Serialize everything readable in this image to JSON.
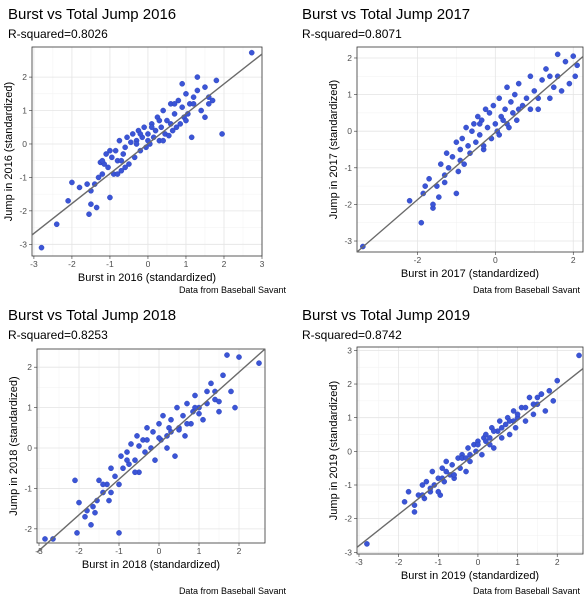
{
  "panels": [
    {
      "title": "Burst vs Total Jump 2016",
      "subtitle": "R-squared=0.8026",
      "caption": "Data from Baseball Savant"
    },
    {
      "title": "Burst vs Total Jump 2017",
      "subtitle": "R-squared=0.8071",
      "caption": "Data from Baseball Savant"
    },
    {
      "title": "Burst vs Total Jump 2018",
      "subtitle": "R-squared=0.8253",
      "caption": "Data from Baseball Savant"
    },
    {
      "title": "Burst vs Total Jump 2019",
      "subtitle": "R-squared=0.8742",
      "caption": "Data from Baseball Savant"
    }
  ],
  "chart_data": [
    {
      "type": "scatter",
      "title": "Burst vs Total Jump 2016",
      "subtitle": "R-squared=0.8026",
      "xlabel": "Burst in 2016 (standardized)",
      "ylabel": "Jump in 2016 (standardized)",
      "caption": "Data from Baseball Savant",
      "xlim": [
        -3.05,
        3.0
      ],
      "ylim": [
        -3.35,
        2.9
      ],
      "xticks": [
        -3,
        -2,
        -1,
        0,
        1,
        2,
        3
      ],
      "yticks": [
        -3,
        -2,
        -1,
        0,
        1,
        2
      ],
      "point_color": "#3b55d6",
      "fit_line": {
        "x": [
          -3.05,
          3.0
        ],
        "y": [
          -2.72,
          2.69
        ],
        "color": "#6a6a6a"
      },
      "x": [
        2.73,
        -2.8,
        -2.4,
        -2.1,
        -2.0,
        -1.8,
        -1.6,
        -1.55,
        -1.5,
        -1.4,
        -1.35,
        -1.3,
        -1.25,
        -1.2,
        -1.15,
        -1.1,
        -1.05,
        -1.0,
        -0.95,
        -0.9,
        -0.85,
        -0.8,
        -0.75,
        -0.7,
        -0.65,
        -0.6,
        -0.55,
        -0.5,
        -0.45,
        -0.4,
        -0.35,
        -0.3,
        -0.25,
        -0.2,
        -0.15,
        -0.1,
        -0.05,
        0.0,
        0.05,
        0.1,
        0.15,
        0.2,
        0.25,
        0.3,
        0.35,
        0.4,
        0.45,
        0.5,
        0.55,
        0.6,
        0.65,
        0.7,
        0.75,
        0.8,
        0.85,
        0.9,
        0.95,
        1.0,
        1.05,
        1.1,
        1.15,
        1.2,
        1.3,
        1.4,
        1.5,
        1.6,
        1.7,
        1.8,
        -1.2,
        -1.0,
        -0.6,
        -0.3,
        0.1,
        0.4,
        0.7,
        1.0,
        1.3,
        1.6,
        -0.8,
        -0.2,
        0.3,
        0.9,
        1.5,
        -1.5,
        -0.7,
        0.0,
        0.6,
        1.2,
        1.95
      ],
      "y": [
        2.73,
        -3.1,
        -2.4,
        -1.7,
        -1.15,
        -1.3,
        -1.2,
        -2.1,
        -1.8,
        -1.2,
        -1.9,
        -1.0,
        -0.55,
        -0.9,
        -0.6,
        -0.3,
        -0.7,
        -1.6,
        -0.4,
        -0.9,
        -0.2,
        -0.5,
        0.1,
        -0.8,
        -0.3,
        -0.1,
        0.2,
        -0.6,
        0.05,
        0.3,
        -0.4,
        0.1,
        0.4,
        -0.2,
        0.2,
        0.5,
        -0.1,
        0.3,
        0.0,
        0.6,
        0.2,
        0.4,
        0.8,
        0.1,
        0.5,
        1.0,
        0.3,
        0.7,
        0.25,
        1.2,
        0.4,
        0.9,
        0.5,
        1.3,
        0.6,
        1.1,
        0.8,
        1.5,
        0.9,
        1.2,
        0.2,
        1.4,
        1.6,
        1.0,
        1.7,
        1.4,
        1.3,
        1.9,
        -0.5,
        -0.2,
        -0.7,
        0.0,
        0.5,
        0.1,
        1.2,
        0.7,
        2.0,
        1.2,
        -0.9,
        0.3,
        0.7,
        1.8,
        0.8,
        -1.4,
        -0.5,
        0.1,
        0.6,
        1.2,
        0.3
      ]
    },
    {
      "type": "scatter",
      "title": "Burst vs Total Jump 2017",
      "subtitle": "R-squared=0.8071",
      "xlabel": "Burst in 2017 (standardized)",
      "ylabel": "Jump in 2017 (standardized)",
      "caption": "Data from Baseball Savant",
      "xlim": [
        -3.55,
        2.25
      ],
      "ylim": [
        -3.3,
        2.3
      ],
      "xticks": [
        -2,
        0,
        2
      ],
      "yticks": [
        -3,
        -2,
        -1,
        0,
        1,
        2
      ],
      "point_color": "#3b55d6",
      "fit_line": {
        "x": [
          -3.55,
          2.25
        ],
        "y": [
          -3.3,
          2.04
        ],
        "color": "#6a6a6a"
      },
      "x": [
        -3.4,
        -2.2,
        -1.9,
        -1.85,
        -1.7,
        -1.6,
        -1.5,
        -1.45,
        -1.4,
        -1.3,
        -1.25,
        -1.2,
        -1.1,
        -1.0,
        -0.95,
        -0.9,
        -0.85,
        -0.8,
        -0.75,
        -0.7,
        -0.65,
        -0.6,
        -0.55,
        -0.5,
        -0.45,
        -0.4,
        -0.35,
        -0.3,
        -0.25,
        -0.2,
        -0.15,
        -0.1,
        -0.05,
        0.0,
        0.05,
        0.1,
        0.15,
        0.2,
        0.25,
        0.3,
        0.35,
        0.4,
        0.45,
        0.5,
        0.55,
        0.6,
        0.7,
        0.8,
        0.9,
        1.0,
        1.1,
        1.2,
        1.3,
        1.4,
        1.5,
        1.6,
        1.7,
        1.8,
        1.9,
        2.0,
        2.05,
        -1.8,
        -1.3,
        -0.9,
        -0.4,
        0.1,
        0.6,
        1.1,
        1.6,
        -1.6,
        -1.0,
        -0.3,
        0.3,
        0.9,
        1.4,
        2.1
      ],
      "y": [
        -3.15,
        -1.9,
        -2.5,
        -1.7,
        -1.3,
        -2.1,
        -1.5,
        -1.8,
        -0.9,
        -1.4,
        -0.6,
        -1.0,
        -0.7,
        -0.3,
        -1.1,
        -0.5,
        -0.2,
        -0.9,
        0.1,
        -0.4,
        -0.6,
        0.0,
        0.2,
        -0.3,
        0.4,
        -0.1,
        0.3,
        -0.5,
        0.6,
        0.1,
        0.5,
        -0.2,
        0.7,
        0.2,
        0.0,
        0.9,
        0.4,
        0.3,
        0.6,
        1.2,
        0.1,
        0.8,
        0.5,
        1.0,
        0.3,
        1.3,
        0.7,
        0.9,
        1.5,
        1.1,
        0.6,
        1.4,
        1.7,
        0.9,
        1.2,
        1.5,
        1.1,
        1.9,
        1.3,
        2.05,
        1.5,
        -1.5,
        -1.2,
        -0.8,
        0.2,
        -0.1,
        0.6,
        0.9,
        2.1,
        -2.0,
        -1.7,
        -0.4,
        0.2,
        0.6,
        1.5,
        1.8
      ]
    },
    {
      "type": "scatter",
      "title": "Burst vs Total Jump 2018",
      "subtitle": "R-squared=0.8253",
      "xlabel": "Burst in 2018 (standardized)",
      "ylabel": "Jump in 2018 (standardized)",
      "caption": "Data from Baseball Savant",
      "xlim": [
        -3.05,
        2.65
      ],
      "ylim": [
        -2.35,
        2.45
      ],
      "xticks": [
        -3,
        -2,
        -1,
        0,
        1,
        2
      ],
      "yticks": [
        -2,
        -1,
        0,
        1,
        2
      ],
      "point_color": "#3b55d6",
      "fit_line": {
        "x": [
          -3.05,
          2.65
        ],
        "y": [
          -2.58,
          2.45
        ],
        "color": "#6a6a6a"
      },
      "x": [
        -2.85,
        -2.65,
        -2.1,
        -2.0,
        -1.85,
        -1.8,
        -1.7,
        -1.6,
        -1.55,
        -1.5,
        -1.4,
        -1.3,
        -1.25,
        -1.2,
        -1.1,
        -1.0,
        -0.95,
        -0.9,
        -0.8,
        -0.75,
        -0.7,
        -0.6,
        -0.55,
        -0.5,
        -0.4,
        -0.35,
        -0.3,
        -0.2,
        -0.15,
        -0.1,
        0.0,
        0.05,
        0.1,
        0.2,
        0.25,
        0.3,
        0.4,
        0.45,
        0.5,
        0.6,
        0.65,
        0.7,
        0.8,
        0.85,
        0.9,
        1.0,
        1.1,
        1.2,
        1.3,
        1.4,
        1.5,
        1.6,
        1.8,
        1.9,
        2.0,
        2.5,
        -1.65,
        -1.2,
        -0.8,
        -0.3,
        0.2,
        0.7,
        1.2,
        1.7,
        -1.0,
        -0.5,
        0.0,
        0.5,
        1.0,
        1.5,
        -2.05,
        -1.4,
        -0.6,
        0.3,
        0.9,
        1.4
      ],
      "y": [
        -2.25,
        -2.25,
        -0.8,
        -1.35,
        -1.7,
        -1.55,
        -1.9,
        -1.6,
        -1.3,
        -0.8,
        -1.1,
        -0.9,
        -1.3,
        -0.5,
        -0.7,
        -0.9,
        -0.2,
        -0.5,
        -0.1,
        -0.4,
        0.1,
        -0.3,
        0.3,
        -0.6,
        0.2,
        -0.1,
        0.5,
        0.0,
        0.4,
        -0.3,
        0.6,
        0.2,
        0.8,
        0.3,
        0.5,
        0.7,
        -0.2,
        1.0,
        0.5,
        0.8,
        0.3,
        1.1,
        0.6,
        0.9,
        1.3,
        1.0,
        0.7,
        1.4,
        1.6,
        1.2,
        0.9,
        1.8,
        1.4,
        1.0,
        2.25,
        2.1,
        -1.45,
        -1.1,
        -0.3,
        0.2,
        0.0,
        0.6,
        1.1,
        2.3,
        -2.1,
        0.05,
        0.25,
        0.45,
        0.85,
        1.15,
        -2.1,
        -0.9,
        -0.6,
        0.4,
        1.0,
        1.4
      ]
    },
    {
      "type": "scatter",
      "title": "Burst vs Total Jump 2019",
      "subtitle": "R-squared=0.8742",
      "xlabel": "Burst in 2019 (standardized)",
      "ylabel": "Jump in 2019 (standardized)",
      "caption": "Data from Baseball Savant",
      "xlim": [
        -3.05,
        2.65
      ],
      "ylim": [
        -3.05,
        3.1
      ],
      "xticks": [
        -3,
        -2,
        -1,
        0,
        1,
        2
      ],
      "yticks": [
        -3,
        -2,
        -1,
        0,
        1,
        2,
        3
      ],
      "point_color": "#3b55d6",
      "fit_line": {
        "x": [
          -3.05,
          2.65
        ],
        "y": [
          -2.85,
          2.46
        ],
        "color": "#6a6a6a"
      },
      "x": [
        -2.8,
        -1.85,
        -1.75,
        -1.6,
        -1.5,
        -1.4,
        -1.35,
        -1.3,
        -1.2,
        -1.15,
        -1.1,
        -1.0,
        -0.95,
        -0.9,
        -0.85,
        -0.8,
        -0.7,
        -0.65,
        -0.6,
        -0.5,
        -0.45,
        -0.4,
        -0.3,
        -0.25,
        -0.2,
        -0.1,
        -0.05,
        0.0,
        0.1,
        0.15,
        0.2,
        0.3,
        0.35,
        0.4,
        0.5,
        0.55,
        0.6,
        0.7,
        0.75,
        0.8,
        0.9,
        0.95,
        1.0,
        1.1,
        1.2,
        1.3,
        1.4,
        1.5,
        1.6,
        1.7,
        1.8,
        1.9,
        2.0,
        2.55,
        -1.6,
        -1.2,
        -0.8,
        -0.4,
        0.0,
        0.4,
        0.8,
        1.2,
        1.6,
        -1.0,
        -0.6,
        -0.2,
        0.2,
        0.6,
        1.0,
        1.4,
        -1.4,
        -0.9,
        -0.3,
        0.3,
        0.9,
        1.5
      ],
      "y": [
        -2.75,
        -1.5,
        -1.2,
        -1.8,
        -1.3,
        -1.0,
        -1.4,
        -0.9,
        -1.2,
        -0.6,
        -1.0,
        -0.8,
        -1.3,
        -0.5,
        -0.9,
        -0.3,
        -0.7,
        -0.4,
        -0.8,
        -0.2,
        -0.5,
        -0.1,
        -0.6,
        0.1,
        -0.3,
        0.2,
        0.0,
        0.3,
        -0.1,
        0.4,
        0.5,
        0.2,
        0.7,
        0.1,
        0.6,
        0.9,
        0.4,
        0.8,
        1.0,
        0.5,
        1.2,
        0.7,
        1.0,
        1.3,
        0.9,
        1.6,
        1.1,
        1.4,
        1.7,
        1.2,
        1.8,
        1.5,
        2.1,
        2.85,
        -1.6,
        -1.1,
        -0.6,
        -0.2,
        0.2,
        0.6,
        0.9,
        1.3,
        1.7,
        -1.2,
        -0.7,
        -0.1,
        0.3,
        0.7,
        1.1,
        1.4,
        -1.3,
        -0.8,
        -0.2,
        0.4,
        0.9,
        1.6
      ]
    }
  ]
}
